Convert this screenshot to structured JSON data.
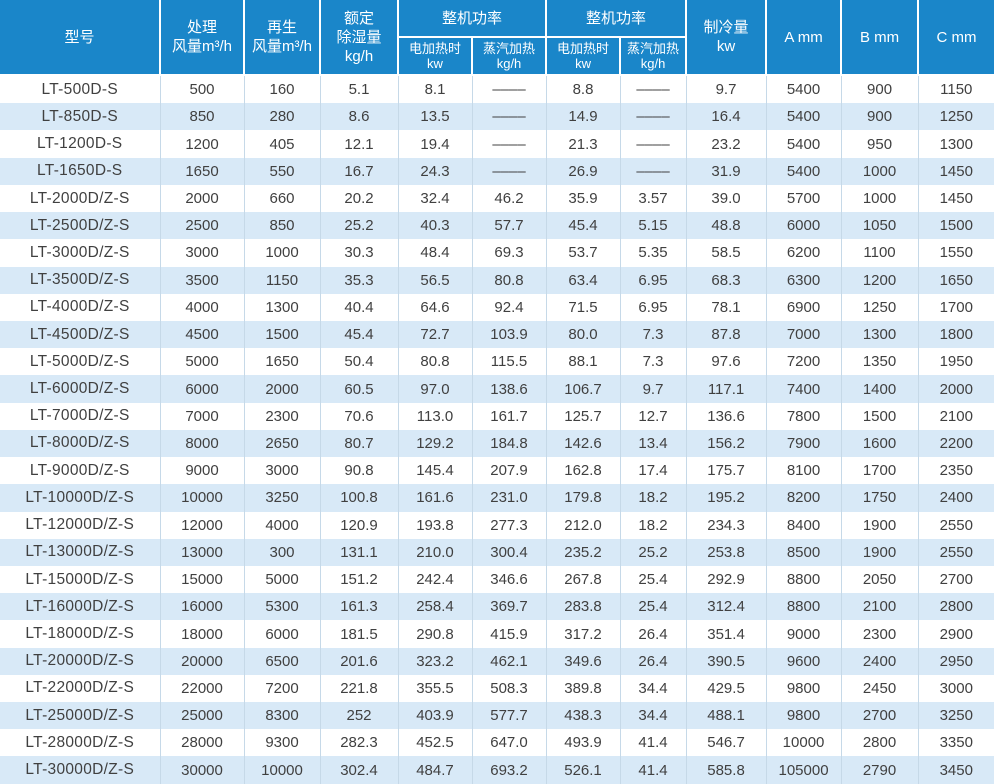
{
  "colors": {
    "header_bg": "#1a86c9",
    "header_text": "#ffffff",
    "row_alt_bg": "#d8e9f7",
    "row_bg": "#ffffff",
    "grid_line": "#c6d9e8",
    "body_text": "#404040"
  },
  "table": {
    "header": {
      "model": "型号",
      "process_air": "处理\n风量m³/h",
      "regen_air": "再生\n风量m³/h",
      "rated_dehumid": "额定\n除湿量\nkg/h",
      "power_group_1": "整机功率",
      "power_group_2": "整机功率",
      "electric_heat_1": "电加热时\nkw",
      "steam_heat_1": "蒸汽加热\nkg/h",
      "electric_heat_2": "电加热时\nkw",
      "steam_heat_2": "蒸汽加热\nkg/h",
      "cooling_capacity": "制冷量\nkw",
      "dim_a": "A mm",
      "dim_b": "B mm",
      "dim_c": "C mm"
    },
    "rows": [
      [
        "LT-500D-S",
        "500",
        "160",
        "5.1",
        "8.1",
        "––––",
        "8.8",
        "––––",
        "9.7",
        "5400",
        "900",
        "1150"
      ],
      [
        "LT-850D-S",
        "850",
        "280",
        "8.6",
        "13.5",
        "––––",
        "14.9",
        "––––",
        "16.4",
        "5400",
        "900",
        "1250"
      ],
      [
        "LT-1200D-S",
        "1200",
        "405",
        "12.1",
        "19.4",
        "––––",
        "21.3",
        "––––",
        "23.2",
        "5400",
        "950",
        "1300"
      ],
      [
        "LT-1650D-S",
        "1650",
        "550",
        "16.7",
        "24.3",
        "––––",
        "26.9",
        "––––",
        "31.9",
        "5400",
        "1000",
        "1450"
      ],
      [
        "LT-2000D/Z-S",
        "2000",
        "660",
        "20.2",
        "32.4",
        "46.2",
        "35.9",
        "3.57",
        "39.0",
        "5700",
        "1000",
        "1450"
      ],
      [
        "LT-2500D/Z-S",
        "2500",
        "850",
        "25.2",
        "40.3",
        "57.7",
        "45.4",
        "5.15",
        "48.8",
        "6000",
        "1050",
        "1500"
      ],
      [
        "LT-3000D/Z-S",
        "3000",
        "1000",
        "30.3",
        "48.4",
        "69.3",
        "53.7",
        "5.35",
        "58.5",
        "6200",
        "1100",
        "1550"
      ],
      [
        "LT-3500D/Z-S",
        "3500",
        "1150",
        "35.3",
        "56.5",
        "80.8",
        "63.4",
        "6.95",
        "68.3",
        "6300",
        "1200",
        "1650"
      ],
      [
        "LT-4000D/Z-S",
        "4000",
        "1300",
        "40.4",
        "64.6",
        "92.4",
        "71.5",
        "6.95",
        "78.1",
        "6900",
        "1250",
        "1700"
      ],
      [
        "LT-4500D/Z-S",
        "4500",
        "1500",
        "45.4",
        "72.7",
        "103.9",
        "80.0",
        "7.3",
        "87.8",
        "7000",
        "1300",
        "1800"
      ],
      [
        "LT-5000D/Z-S",
        "5000",
        "1650",
        "50.4",
        "80.8",
        "115.5",
        "88.1",
        "7.3",
        "97.6",
        "7200",
        "1350",
        "1950"
      ],
      [
        "LT-6000D/Z-S",
        "6000",
        "2000",
        "60.5",
        "97.0",
        "138.6",
        "106.7",
        "9.7",
        "117.1",
        "7400",
        "1400",
        "2000"
      ],
      [
        "LT-7000D/Z-S",
        "7000",
        "2300",
        "70.6",
        "113.0",
        "161.7",
        "125.7",
        "12.7",
        "136.6",
        "7800",
        "1500",
        "2100"
      ],
      [
        "LT-8000D/Z-S",
        "8000",
        "2650",
        "80.7",
        "129.2",
        "184.8",
        "142.6",
        "13.4",
        "156.2",
        "7900",
        "1600",
        "2200"
      ],
      [
        "LT-9000D/Z-S",
        "9000",
        "3000",
        "90.8",
        "145.4",
        "207.9",
        "162.8",
        "17.4",
        "175.7",
        "8100",
        "1700",
        "2350"
      ],
      [
        "LT-10000D/Z-S",
        "10000",
        "3250",
        "100.8",
        "161.6",
        "231.0",
        "179.8",
        "18.2",
        "195.2",
        "8200",
        "1750",
        "2400"
      ],
      [
        "LT-12000D/Z-S",
        "12000",
        "4000",
        "120.9",
        "193.8",
        "277.3",
        "212.0",
        "18.2",
        "234.3",
        "8400",
        "1900",
        "2550"
      ],
      [
        "LT-13000D/Z-S",
        "13000",
        "300",
        "131.1",
        "210.0",
        "300.4",
        "235.2",
        "25.2",
        "253.8",
        "8500",
        "1900",
        "2550"
      ],
      [
        "LT-15000D/Z-S",
        "15000",
        "5000",
        "151.2",
        "242.4",
        "346.6",
        "267.8",
        "25.4",
        "292.9",
        "8800",
        "2050",
        "2700"
      ],
      [
        "LT-16000D/Z-S",
        "16000",
        "5300",
        "161.3",
        "258.4",
        "369.7",
        "283.8",
        "25.4",
        "312.4",
        "8800",
        "2100",
        "2800"
      ],
      [
        "LT-18000D/Z-S",
        "18000",
        "6000",
        "181.5",
        "290.8",
        "415.9",
        "317.2",
        "26.4",
        "351.4",
        "9000",
        "2300",
        "2900"
      ],
      [
        "LT-20000D/Z-S",
        "20000",
        "6500",
        "201.6",
        "323.2",
        "462.1",
        "349.6",
        "26.4",
        "390.5",
        "9600",
        "2400",
        "2950"
      ],
      [
        "LT-22000D/Z-S",
        "22000",
        "7200",
        "221.8",
        "355.5",
        "508.3",
        "389.8",
        "34.4",
        "429.5",
        "9800",
        "2450",
        "3000"
      ],
      [
        "LT-25000D/Z-S",
        "25000",
        "8300",
        "252",
        "403.9",
        "577.7",
        "438.3",
        "34.4",
        "488.1",
        "9800",
        "2700",
        "3250"
      ],
      [
        "LT-28000D/Z-S",
        "28000",
        "9300",
        "282.3",
        "452.5",
        "647.0",
        "493.9",
        "41.4",
        "546.7",
        "10000",
        "2800",
        "3350"
      ],
      [
        "LT-30000D/Z-S",
        "30000",
        "10000",
        "302.4",
        "484.7",
        "693.2",
        "526.1",
        "41.4",
        "585.8",
        "105000",
        "2790",
        "3450"
      ]
    ]
  }
}
